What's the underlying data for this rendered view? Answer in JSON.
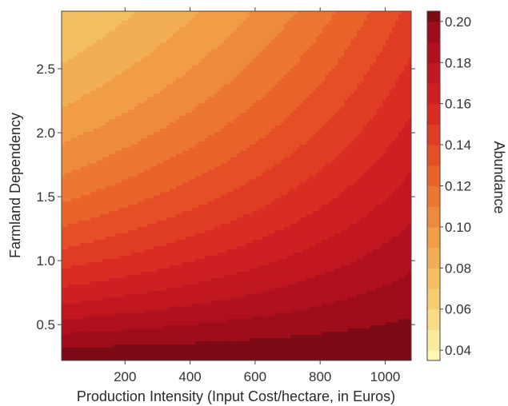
{
  "chart_data": {
    "type": "heatmap",
    "subtype": "filled-contour",
    "title": "",
    "xlabel": "Production Intensity (Input Cost/hectare, in Euros)",
    "ylabel": "Farmland Dependency",
    "colorbar_label": "Abundance",
    "xlim": [
      5,
      1080
    ],
    "ylim": [
      0.22,
      2.95
    ],
    "x_ticks": [
      200,
      400,
      600,
      800,
      1000
    ],
    "x_tick_labels": [
      "200",
      "400",
      "600",
      "800",
      "1000"
    ],
    "y_ticks": [
      0.5,
      1.0,
      1.5,
      2.0,
      2.5
    ],
    "y_tick_labels": [
      "0.5",
      "1.0",
      "1.5",
      "2.0",
      "2.5"
    ],
    "colorbar_range": [
      0.035,
      0.205
    ],
    "colorbar_ticks": [
      0.04,
      0.06,
      0.08,
      0.1,
      0.12,
      0.14,
      0.16,
      0.18,
      0.2
    ],
    "colorbar_tick_labels": [
      "0.04",
      "0.06",
      "0.08",
      "0.10",
      "0.12",
      "0.14",
      "0.16",
      "0.18",
      "0.20"
    ],
    "levels": [
      0.03,
      0.04,
      0.05,
      0.06,
      0.07,
      0.08,
      0.09,
      0.1,
      0.11,
      0.12,
      0.13,
      0.14,
      0.15,
      0.16,
      0.17,
      0.18,
      0.19,
      0.2,
      0.21
    ],
    "level_colors": [
      "#fff8b4",
      "#fbeb9e",
      "#f9dc87",
      "#f6cd73",
      "#f4be62",
      "#f2ae53",
      "#f09d46",
      "#ee8a3b",
      "#ec7732",
      "#e9632b",
      "#e54f26",
      "#e03c24",
      "#d92d23",
      "#ce2022",
      "#c11720",
      "#b1111e",
      "#9e0d1b",
      "#7d0a14"
    ],
    "surface_samples": [
      {
        "x": 5,
        "y": 2.95,
        "z": 0.035
      },
      {
        "x": 5,
        "y": 0.22,
        "z": 0.175
      },
      {
        "x": 1080,
        "y": 2.95,
        "z": 0.14
      },
      {
        "x": 1080,
        "y": 0.22,
        "z": 0.21
      },
      {
        "x": 600,
        "y": 1.5,
        "z": 0.11
      }
    ],
    "grid": false,
    "legend": "colorbar-right"
  }
}
